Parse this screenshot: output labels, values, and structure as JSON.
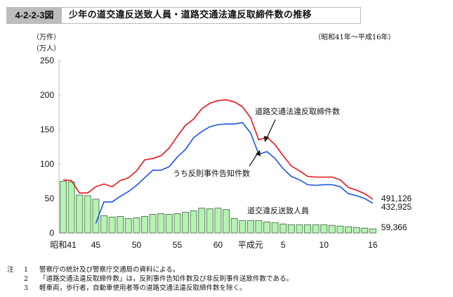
{
  "header": {
    "figure_number": "4-2-2-3図",
    "title": "少年の道交違反送致人員・道路交通法違反取締件数の推移",
    "period": "（昭和41年～平成16年）"
  },
  "units": [
    "（万件）",
    "（万人）"
  ],
  "notes": {
    "head": "注",
    "items": [
      {
        "num": "1",
        "text": "警察庁の統計及び警察庁交通局の資料による。"
      },
      {
        "num": "2",
        "text": "「道路交通法違反取締件数」は，反則事件告知件数及び非反則事件送致件数である。"
      },
      {
        "num": "3",
        "text": "軽車両，歩行者，自動車使用者等の道路交通法違反取締件数を除く。"
      }
    ]
  },
  "chart_data": {
    "type": "bar+line",
    "title": "少年の道交違反送致人員・道路交通法違反取締件数の推移",
    "ylabel": "（万件）（万人）",
    "ylim": [
      0,
      250
    ],
    "yticks": [
      0,
      50,
      100,
      150,
      200,
      250
    ],
    "xtick_labels": [
      {
        "index": 0,
        "label": "昭和41"
      },
      {
        "index": 4,
        "label": "45"
      },
      {
        "index": 9,
        "label": "50"
      },
      {
        "index": 14,
        "label": "55"
      },
      {
        "index": 19,
        "label": "60"
      },
      {
        "index": 23,
        "label": "平成元"
      },
      {
        "index": 27,
        "label": "5"
      },
      {
        "index": 32,
        "label": "10"
      },
      {
        "index": 38,
        "label": "16"
      }
    ],
    "categories": [
      "S41",
      "S42",
      "S43",
      "S44",
      "S45",
      "S46",
      "S47",
      "S48",
      "S49",
      "S50",
      "S51",
      "S52",
      "S53",
      "S54",
      "S55",
      "S56",
      "S57",
      "S58",
      "S59",
      "S60",
      "S61",
      "S62",
      "S63",
      "H1",
      "H2",
      "H3",
      "H4",
      "H5",
      "H6",
      "H7",
      "H8",
      "H9",
      "H10",
      "H11",
      "H12",
      "H13",
      "H14",
      "H15",
      "H16"
    ],
    "series": [
      {
        "name": "道路交通法違反取締件数",
        "type": "line",
        "color": "#e8141a",
        "values": [
          77,
          76,
          58,
          58,
          67,
          71,
          67,
          76,
          80,
          90,
          106,
          108,
          112,
          123,
          140,
          156,
          165,
          180,
          188,
          192,
          193,
          190,
          183,
          167,
          135,
          139,
          128,
          112,
          97,
          90,
          82,
          81,
          81,
          81,
          77,
          66,
          62,
          57,
          49
        ],
        "end_label": "491,126"
      },
      {
        "name": "うち反則事件告知件数",
        "type": "line",
        "color": "#1a55e8",
        "values": [
          null,
          null,
          null,
          null,
          14,
          45,
          45,
          53,
          60,
          69,
          80,
          91,
          91,
          96,
          110,
          121,
          138,
          147,
          154,
          157,
          158,
          158,
          160,
          145,
          114,
          118,
          108,
          93,
          82,
          77,
          70,
          69,
          70,
          70,
          67,
          57,
          54,
          50,
          43
        ],
        "end_label": "432,925"
      },
      {
        "name": "道交違反送致人員",
        "type": "bar",
        "color": "#b3f5b0",
        "edge": "#5e7a5e",
        "values": [
          75,
          74,
          55,
          54,
          49,
          25,
          23,
          24,
          21,
          22,
          24,
          27,
          28,
          27,
          28,
          30,
          32,
          36,
          35,
          36,
          34,
          21,
          18,
          18,
          18,
          16,
          15,
          13,
          12,
          12,
          12,
          12,
          12,
          11,
          10,
          9,
          8,
          7,
          6
        ],
        "end_label": "59,366"
      }
    ],
    "annotations": [
      {
        "text": "道路交通法違反取締件数",
        "arrow_to": "red line near 平成3"
      },
      {
        "text": "うち反則事件告知件数",
        "arrow_to": "blue line near 平成3"
      },
      {
        "text": "道交違反送致人員",
        "position": "above bars near 平成元–5"
      }
    ],
    "grid": false,
    "legend": "none (direct labels)"
  }
}
